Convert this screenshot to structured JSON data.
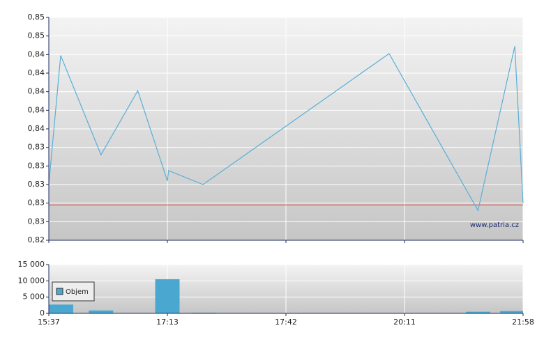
{
  "chart_data": [
    {
      "type": "line",
      "x": [
        0,
        0.1,
        0.44,
        0.75,
        1.0,
        1.01,
        1.3,
        2.87,
        3.62,
        3.93,
        4.0
      ],
      "series": [
        {
          "color": "#5aafd6",
          "values": [
            0.83,
            0.8439,
            0.8332,
            0.8401,
            0.8304,
            0.8315,
            0.83,
            0.8441,
            0.8272,
            0.8449,
            0.828
          ]
        }
      ],
      "reference": 0.8278,
      "reference_color": "#d9534f",
      "xlim": [
        0,
        4
      ],
      "ylim": [
        0.824,
        0.848
      ],
      "yticks": [
        {
          "value": 0.824,
          "label": "0,82"
        },
        {
          "value": 0.826,
          "label": "0,83"
        },
        {
          "value": 0.828,
          "label": "0,83"
        },
        {
          "value": 0.83,
          "label": "0,83"
        },
        {
          "value": 0.832,
          "label": "0,83"
        },
        {
          "value": 0.834,
          "label": "0,83"
        },
        {
          "value": 0.836,
          "label": "0,84"
        },
        {
          "value": 0.838,
          "label": "0,84"
        },
        {
          "value": 0.84,
          "label": "0,84"
        },
        {
          "value": 0.842,
          "label": "0,84"
        },
        {
          "value": 0.844,
          "label": "0,84"
        },
        {
          "value": 0.846,
          "label": "0,85"
        },
        {
          "value": 0.848,
          "label": "0,85"
        }
      ],
      "grid": true,
      "annotation": "www.patria.cz"
    },
    {
      "type": "bar",
      "x": [
        0.103,
        0.44,
        1.0,
        1.31,
        3.62,
        3.91
      ],
      "series": [
        {
          "name": "Objem",
          "color": "#4aa8d0",
          "values": [
            2700,
            900,
            10500,
            200,
            500,
            700
          ]
        }
      ],
      "xlim": [
        0,
        4
      ],
      "xticks": [
        {
          "value": 0,
          "label": "15:37"
        },
        {
          "value": 1,
          "label": "17:13"
        },
        {
          "value": 2,
          "label": "17:42"
        },
        {
          "value": 3,
          "label": "20:11"
        },
        {
          "value": 4,
          "label": "21:58"
        }
      ],
      "ylim": [
        0,
        15000
      ],
      "yticks": [
        0,
        {
          "value": 5000,
          "label": "5 000"
        },
        {
          "value": 10000,
          "label": "10 000"
        },
        {
          "value": 15000,
          "label": "15 000"
        }
      ],
      "grid": true,
      "legend": "left"
    }
  ]
}
